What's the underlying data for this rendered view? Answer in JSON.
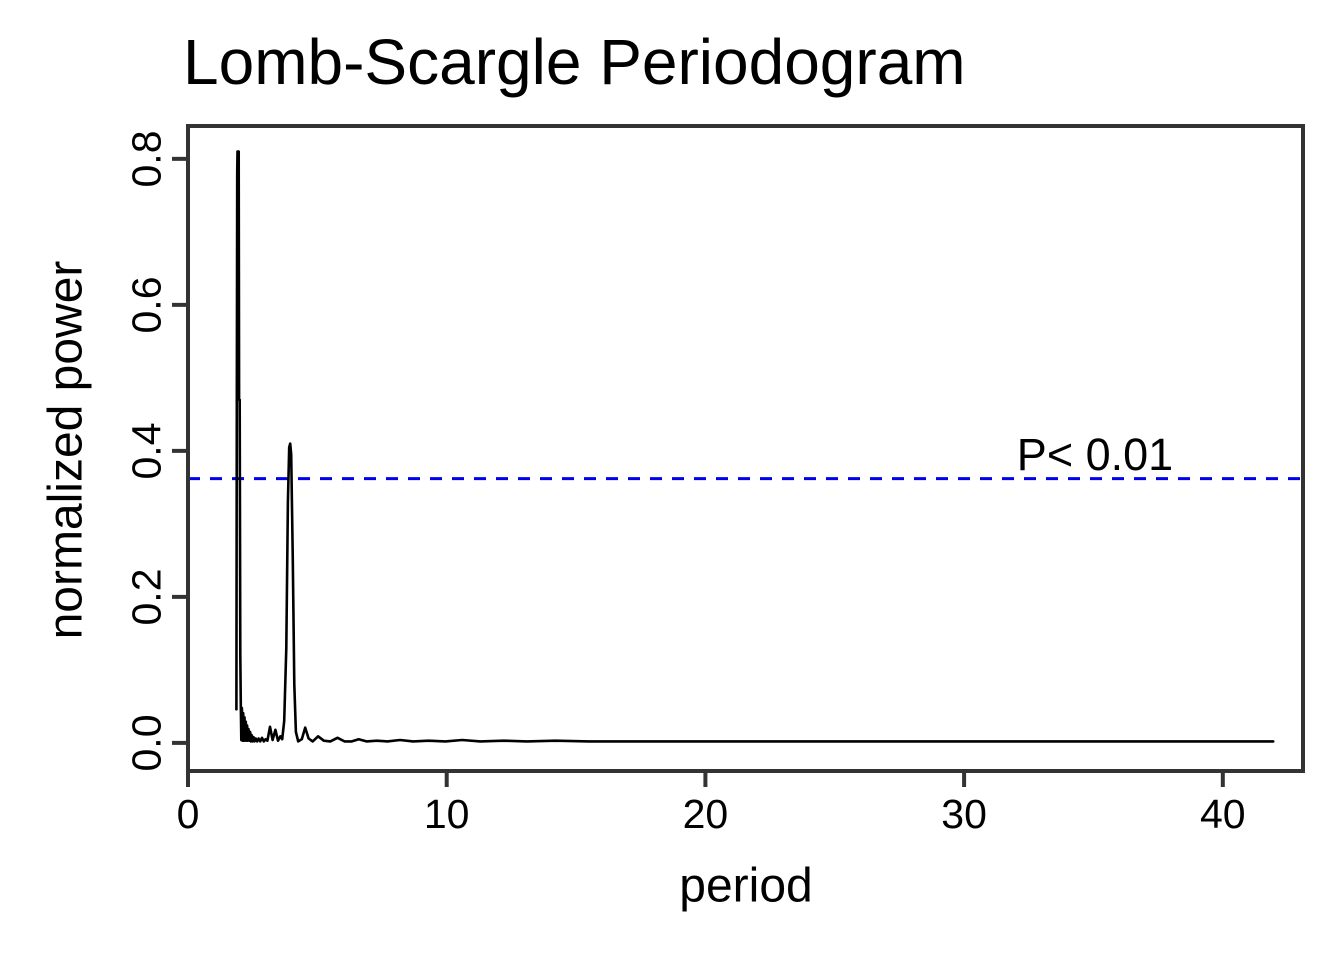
{
  "figure": {
    "background": "#ffffff"
  },
  "chart_data": {
    "type": "line",
    "title": "Lomb-Scargle Periodogram",
    "xlabel": "period",
    "ylabel": "normalized power",
    "x_ticks": [
      0,
      10,
      20,
      30,
      40
    ],
    "x_tick_labels": [
      "0",
      "10",
      "20",
      "30",
      "40"
    ],
    "y_ticks": [
      0,
      0.2,
      0.4,
      0.6,
      0.8
    ],
    "y_tick_labels": [
      "0.0",
      "0.2",
      "0.4",
      "0.6",
      "0.8"
    ],
    "xlim": [
      0,
      43.1
    ],
    "ylim": [
      -0.0385,
      0.845
    ],
    "grid": false,
    "legend": "none",
    "colors": {
      "line": "#000000",
      "frame": "#333333",
      "threshold": "#0000EE",
      "text": "#000000"
    },
    "threshold": {
      "value": 0.362,
      "label": "P< 0.01",
      "style": "dashed"
    },
    "peaks": [
      {
        "period": 2.0,
        "power": 0.81
      },
      {
        "period": 3.95,
        "power": 0.41
      }
    ],
    "series": [
      {
        "name": "normalized power",
        "points": [
          [
            1.87,
            0.046
          ],
          [
            1.885,
            0.46
          ],
          [
            1.9,
            0.78
          ],
          [
            1.915,
            0.81
          ],
          [
            1.96,
            0.81
          ],
          [
            1.975,
            0.47
          ],
          [
            2.0,
            0.47
          ],
          [
            2.02,
            0.12
          ],
          [
            2.04,
            0.052
          ],
          [
            2.06,
            0.004
          ],
          [
            2.085,
            0.048
          ],
          [
            2.11,
            0.003
          ],
          [
            2.135,
            0.041
          ],
          [
            2.16,
            0.003
          ],
          [
            2.185,
            0.035
          ],
          [
            2.21,
            0.003
          ],
          [
            2.235,
            0.029
          ],
          [
            2.26,
            0.003
          ],
          [
            2.285,
            0.024
          ],
          [
            2.31,
            0.003
          ],
          [
            2.34,
            0.019
          ],
          [
            2.37,
            0.003
          ],
          [
            2.4,
            0.015
          ],
          [
            2.43,
            0.002
          ],
          [
            2.46,
            0.011
          ],
          [
            2.49,
            0.002
          ],
          [
            2.53,
            0.008
          ],
          [
            2.57,
            0.002
          ],
          [
            2.62,
            0.006
          ],
          [
            2.67,
            0.002
          ],
          [
            2.73,
            0.006
          ],
          [
            2.79,
            0.002
          ],
          [
            2.86,
            0.007
          ],
          [
            2.93,
            0.002
          ],
          [
            3.0,
            0.005
          ],
          [
            3.07,
            0.003
          ],
          [
            3.17,
            0.022
          ],
          [
            3.27,
            0.004
          ],
          [
            3.38,
            0.018
          ],
          [
            3.48,
            0.003
          ],
          [
            3.57,
            0.009
          ],
          [
            3.64,
            0.005
          ],
          [
            3.72,
            0.03
          ],
          [
            3.8,
            0.13
          ],
          [
            3.86,
            0.33
          ],
          [
            3.91,
            0.405
          ],
          [
            3.95,
            0.41
          ],
          [
            3.99,
            0.395
          ],
          [
            4.05,
            0.25
          ],
          [
            4.11,
            0.08
          ],
          [
            4.17,
            0.015
          ],
          [
            4.26,
            0.002
          ],
          [
            4.4,
            0.005
          ],
          [
            4.53,
            0.021
          ],
          [
            4.66,
            0.006
          ],
          [
            4.82,
            0.002
          ],
          [
            5.03,
            0.009
          ],
          [
            5.25,
            0.003
          ],
          [
            5.5,
            0.002
          ],
          [
            5.78,
            0.007
          ],
          [
            6.05,
            0.002
          ],
          [
            6.33,
            0.002
          ],
          [
            6.6,
            0.005
          ],
          [
            6.9,
            0.002
          ],
          [
            7.3,
            0.003
          ],
          [
            7.7,
            0.002
          ],
          [
            8.2,
            0.004
          ],
          [
            8.7,
            0.002
          ],
          [
            9.3,
            0.003
          ],
          [
            9.95,
            0.002
          ],
          [
            10.6,
            0.004
          ],
          [
            11.3,
            0.002
          ],
          [
            12.2,
            0.003
          ],
          [
            13.1,
            0.002
          ],
          [
            14.2,
            0.003
          ],
          [
            15.5,
            0.002
          ],
          [
            17.0,
            0.002
          ],
          [
            19.0,
            0.002
          ],
          [
            21.0,
            0.002
          ],
          [
            24.0,
            0.002
          ],
          [
            27.0,
            0.002
          ],
          [
            30.0,
            0.002
          ],
          [
            33.0,
            0.002
          ],
          [
            36.0,
            0.002
          ],
          [
            39.0,
            0.002
          ],
          [
            41.95,
            0.002
          ]
        ]
      }
    ]
  }
}
